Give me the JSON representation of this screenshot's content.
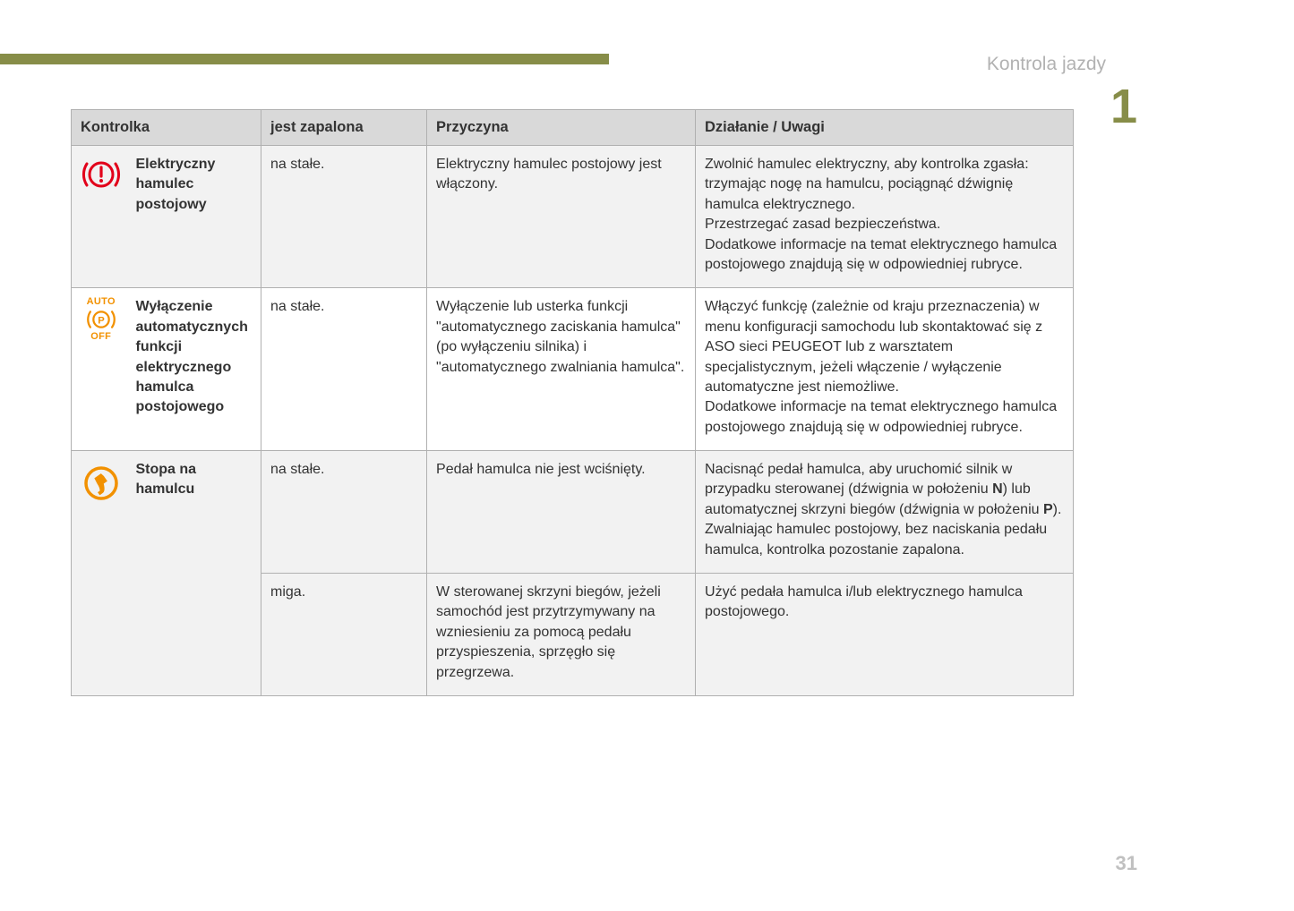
{
  "sectionTitle": "Kontrola jazdy",
  "chapterNumber": "1",
  "pageNumber": "31",
  "colors": {
    "accent": "#878d48",
    "headerBg": "#d9d9d9",
    "evenRowBg": "#f2f2f2",
    "oddRowBg": "#ffffff",
    "border": "#b0b0b0",
    "grayText": "#b2b2b2",
    "pageNum": "#c0c0c0",
    "iconRed": "#e2001a",
    "iconOrange": "#f29100"
  },
  "table": {
    "headers": {
      "c1": "Kontrolka",
      "c2": "jest zapalona",
      "c3": "Przyczyna",
      "c4": "Działanie / Uwagi"
    },
    "rows": [
      {
        "icon": "brake-warning",
        "name": "Elektryczny hamulec postojowy",
        "lit": "na stałe.",
        "cause": "Elektryczny hamulec postojowy jest włączony.",
        "action": "Zwolnić hamulec elektryczny, aby kontrolka zgasła: trzymając nogę na hamulcu, pociągnąć dźwignię hamulca elektrycznego.\nPrzestrzegać zasad bezpieczeństwa.\nDodatkowe informacje na temat elektrycznego hamulca postojowego znajdują się w odpowiedniej rubryce."
      },
      {
        "icon": "auto-p-off",
        "name": "Wyłączenie automatycznych funkcji elektrycznego hamulca postojowego",
        "lit": "na stałe.",
        "cause": "Wyłączenie lub usterka funkcji \"automatycznego zaciskania hamulca\" (po wyłączeniu silnika) i \"automatycznego zwalniania hamulca\".",
        "action": "Włączyć funkcję (zależnie od kraju przeznaczenia) w menu konfiguracji samochodu lub skontaktować się z ASO sieci PEUGEOT lub z warsztatem specjalistycznym, jeżeli włączenie / wyłączenie automatyczne jest niemożliwe.\nDodatkowe informacje na temat elektrycznego hamulca postojowego znajdują się w odpowiedniej rubryce."
      },
      {
        "icon": "foot-brake",
        "name": "Stopa na hamulcu",
        "sub": [
          {
            "lit": "na stałe.",
            "cause": "Pedał hamulca nie jest wciśnięty.",
            "action_pre": "Nacisnąć pedał hamulca, aby uruchomić silnik w przypadku sterowanej (dźwignia w położeniu ",
            "action_b1": "N",
            "action_mid": ") lub automatycznej skrzyni biegów (dźwignia w położeniu ",
            "action_b2": "P",
            "action_post": "). Zwalniając hamulec postojowy, bez naciskania pedału hamulca, kontrolka pozostanie zapalona."
          },
          {
            "lit": "miga.",
            "cause": "W sterowanej skrzyni biegów, jeżeli samochód jest przytrzymywany na wzniesieniu za pomocą pedału przyspieszenia, sprzęgło się przegrzewa.",
            "action": "Użyć pedała hamulca i/lub elektrycznego hamulca postojowego."
          }
        ]
      }
    ],
    "autoText": "AUTO",
    "offText": "OFF",
    "pText": "P"
  }
}
